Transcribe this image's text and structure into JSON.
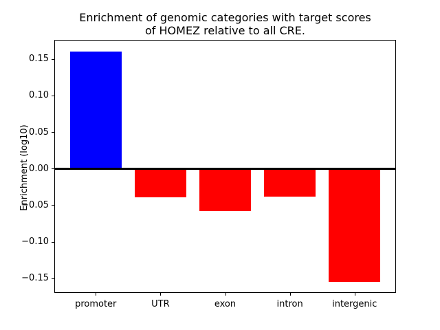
{
  "figure": {
    "title_line1": "Enrichment of genomic categories with target scores",
    "title_line2": "of HOMEZ relative to all CRE."
  },
  "chart_data": {
    "type": "bar",
    "title": "Enrichment of genomic categories with target scores\nof HOMEZ relative to all CRE.",
    "xlabel": "",
    "ylabel": "Enrichment (log10)",
    "categories": [
      "promoter",
      "UTR",
      "exon",
      "intron",
      "intergenic"
    ],
    "values": [
      0.16,
      -0.039,
      -0.058,
      -0.038,
      -0.155
    ],
    "bar_colors": [
      "#0000ff",
      "#ff0000",
      "#ff0000",
      "#ff0000",
      "#ff0000"
    ],
    "bar_width_units": 0.8,
    "xlim": [
      -0.64,
      4.64
    ],
    "ylim": [
      -0.17,
      0.176
    ],
    "yticks": [
      0.15,
      0.1,
      0.05,
      0.0,
      -0.05,
      -0.1,
      -0.15
    ],
    "ytick_labels": [
      "0.15",
      "0.10",
      "0.05",
      "0.00",
      "−0.05",
      "−0.10",
      "−0.15"
    ],
    "zero_line": {
      "show": true,
      "color": "#000000",
      "thickness_px": 3
    },
    "grid": false,
    "legend": null,
    "background_color": "#ffffff",
    "axis_color": "#000000"
  }
}
